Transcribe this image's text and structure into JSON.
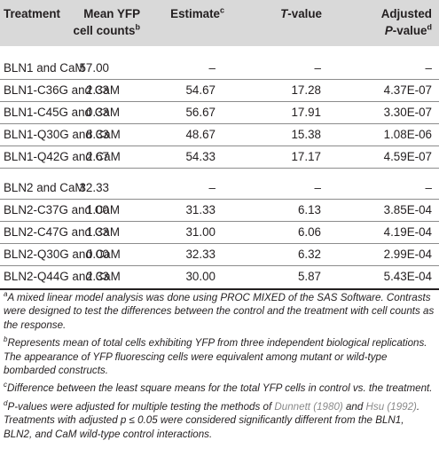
{
  "header": {
    "treatment": "Treatment",
    "mean_line1": "Mean YFP",
    "mean_line2": "cell counts",
    "mean_sup": "b",
    "estimate": "Estimate",
    "estimate_sup": "c",
    "t_italic": "T",
    "t_rest": "-value",
    "adj_line1": "Adjusted",
    "adj_p_italic": "P",
    "adj_rest": "-value",
    "adj_sup": "d"
  },
  "rows": [
    {
      "treatment": "BLN1 and CaM",
      "mean": "57.00",
      "estimate": "–",
      "t": "–",
      "p": "–"
    },
    {
      "treatment": "BLN1-C36G and CaM",
      "mean": "2.33",
      "estimate": "54.67",
      "t": "17.28",
      "p": "4.37E-07"
    },
    {
      "treatment": "BLN1-C45G and CaM",
      "mean": "0.33",
      "estimate": "56.67",
      "t": "17.91",
      "p": "3.30E-07"
    },
    {
      "treatment": "BLN1-Q30G and CaM",
      "mean": "8.33",
      "estimate": "48.67",
      "t": "15.38",
      "p": "1.08E-06"
    },
    {
      "treatment": "BLN1-Q42G and CaM",
      "mean": "2.67",
      "estimate": "54.33",
      "t": "17.17",
      "p": "4.59E-07"
    },
    {
      "treatment": "BLN2 and CaM",
      "mean": "32.33",
      "estimate": "–",
      "t": "–",
      "p": "–"
    },
    {
      "treatment": "BLN2-C37G and CaM",
      "mean": "1.00",
      "estimate": "31.33",
      "t": "6.13",
      "p": "3.85E-04"
    },
    {
      "treatment": "BLN2-C47G and CaM",
      "mean": "1.33",
      "estimate": "31.00",
      "t": "6.06",
      "p": "4.19E-04"
    },
    {
      "treatment": "BLN2-Q30G and CaM",
      "mean": "0.00",
      "estimate": "32.33",
      "t": "6.32",
      "p": "2.99E-04"
    },
    {
      "treatment": "BLN2-Q44G and CaM",
      "mean": "2.33",
      "estimate": "30.00",
      "t": "5.87",
      "p": "5.43E-04"
    }
  ],
  "notes": {
    "a_sup": "a",
    "a_text": "A mixed linear model analysis was done using PROC MIXED of the SAS Software. Contrasts were designed to test the differences between the control and the treatment with cell counts as the response.",
    "b_sup": "b",
    "b_text": "Represents mean of total cells exhibiting YFP from three independent biological replications. The appearance of YFP fluorescing cells were equivalent among mutant or wild-type bombarded constructs.",
    "c_sup": "c",
    "c_text": "Difference between the least square means for the total YFP cells in control vs. the treatment.",
    "d_sup": "d",
    "d_p": "P",
    "d_text1": "-values were adjusted for multiple testing the methods of ",
    "d_ref1": "Dunnett (1980)",
    "d_and": " and ",
    "d_ref2": "Hsu (1992)",
    "d_text2": ". Treatments with adjusted p ≤ 0.05 were considered significantly different from the BLN1, BLN2, and CaM wild-type control interactions."
  }
}
